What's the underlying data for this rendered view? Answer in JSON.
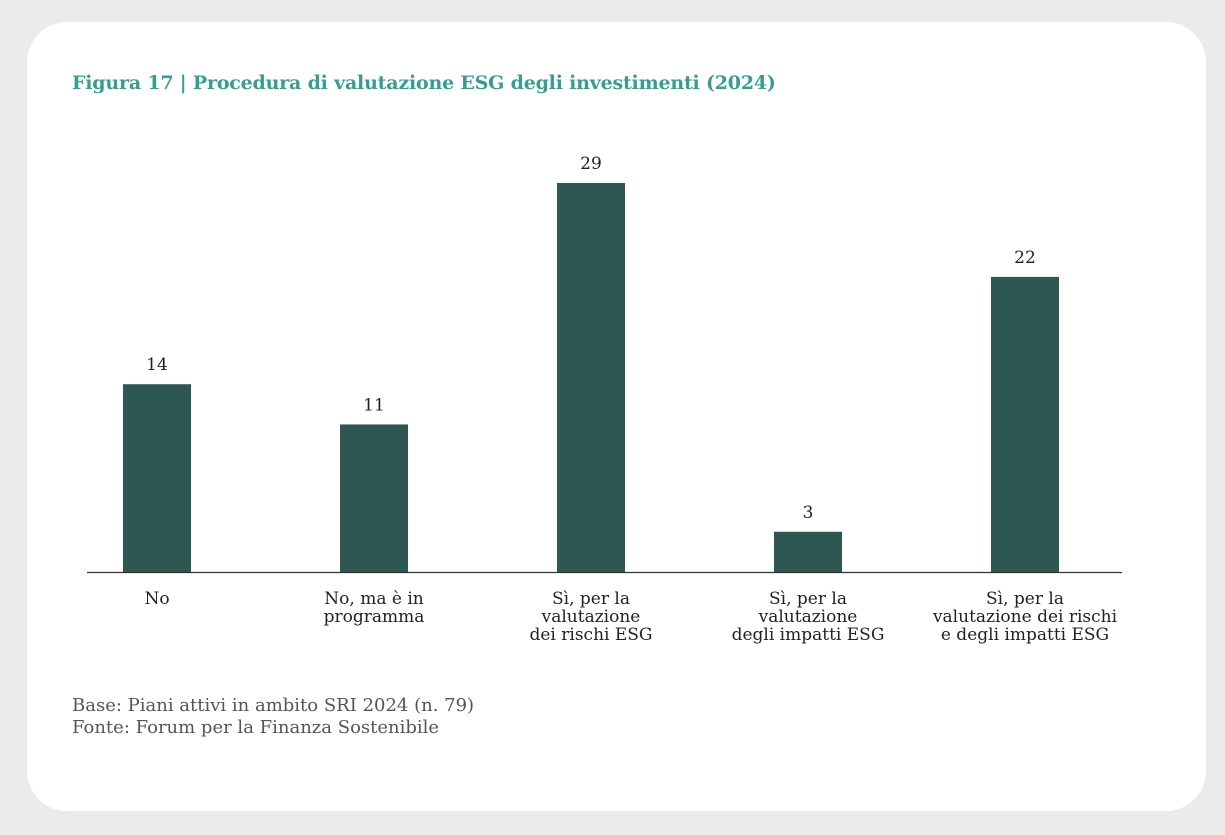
{
  "figure_title": "Figura 17 | Procedura di valutazione ESG degli investimenti (2024)",
  "colors": {
    "bar": "#2f5752",
    "title": "#3a9b8f",
    "text": "#222222",
    "note": "#555555",
    "background": "#ebebeb",
    "card": "#ffffff"
  },
  "chart_data": {
    "type": "bar",
    "title": "Figura 17 | Procedura di valutazione ESG degli investimenti (2024)",
    "categories": [
      [
        "No"
      ],
      [
        "No, ma è in",
        "programma"
      ],
      [
        "Sì, per la",
        "valutazione",
        "dei rischi ESG"
      ],
      [
        "Sì, per la",
        "valutazione",
        "degli impatti ESG"
      ],
      [
        "Sì, per la",
        "valutazione dei rischi",
        "e degli impatti ESG"
      ]
    ],
    "values": [
      14,
      11,
      29,
      3,
      22
    ],
    "data_labels": [
      "14",
      "11",
      "29",
      "3",
      "22"
    ],
    "ylim": [
      0,
      29
    ],
    "grid": false,
    "legend": "none"
  },
  "notes": {
    "base": "Base: Piani attivi in ambito SRI 2024 (n. 79)",
    "source": "Fonte: Forum per la Finanza Sostenibile"
  }
}
